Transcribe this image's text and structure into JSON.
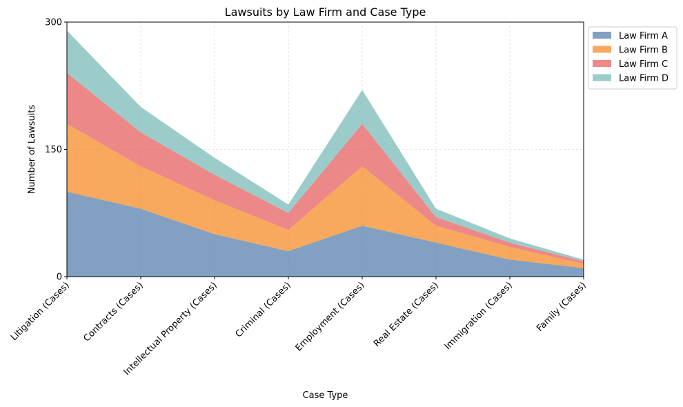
{
  "chart_data": {
    "type": "area",
    "stacked": true,
    "title": "Lawsuits by Law Firm and Case Type",
    "xlabel": "Case Type",
    "ylabel": "Number of Lawsuits",
    "categories": [
      "Litigation (Cases)",
      "Contracts (Cases)",
      "Intellectual Property (Cases)",
      "Criminal (Cases)",
      "Employment (Cases)",
      "Real Estate (Cases)",
      "Immigration (Cases)",
      "Family (Cases)"
    ],
    "ylim": [
      0,
      300
    ],
    "yticks": [
      0,
      150,
      300
    ],
    "grid": true,
    "legend_position": "outside-top-right",
    "series": [
      {
        "name": "Law Firm A",
        "color": "#4c78a8",
        "values": [
          100,
          80,
          50,
          30,
          60,
          40,
          20,
          10
        ]
      },
      {
        "name": "Law Firm B",
        "color": "#f58518",
        "values": [
          80,
          50,
          40,
          25,
          70,
          20,
          15,
          5
        ]
      },
      {
        "name": "Law Firm C",
        "color": "#e45756",
        "values": [
          60,
          40,
          30,
          20,
          50,
          10,
          5,
          3
        ]
      },
      {
        "name": "Law Firm D",
        "color": "#72b7b2",
        "values": [
          50,
          30,
          20,
          10,
          40,
          10,
          5,
          2
        ]
      }
    ],
    "alpha": 0.7
  }
}
